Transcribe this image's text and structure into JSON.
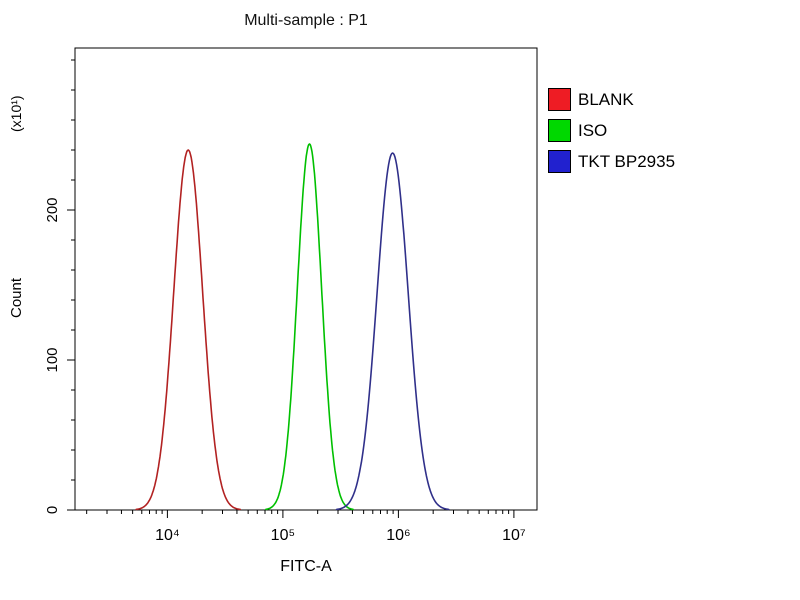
{
  "title": "Multi-sample : P1",
  "axes": {
    "x": {
      "label": "FITC-A"
    },
    "y": {
      "label": "Count",
      "unit": "(x10¹)"
    }
  },
  "legend": [
    {
      "label": "BLANK",
      "color": "#ee1c24"
    },
    {
      "label": "ISO",
      "color": "#00d800"
    },
    {
      "label": "TKT BP2935",
      "color": "#2121cf"
    }
  ],
  "chart_data": {
    "type": "line",
    "subtype": "flow-cytometry-histogram-overlay",
    "title": "Multi-sample : P1",
    "xlabel": "FITC-A",
    "ylabel": "Count (x10¹)",
    "x_scale": "log10",
    "xlim_log10": [
      3.2,
      7.2
    ],
    "ylim": [
      0,
      308
    ],
    "x_tick_exponents": [
      4,
      5,
      6,
      7
    ],
    "x_tick_labels": [
      "10⁴",
      "10⁵",
      "10⁶",
      "10⁷"
    ],
    "y_ticks": [
      0,
      100,
      200
    ],
    "y_minor_step": 20,
    "grid": false,
    "legend_position": "right",
    "series": [
      {
        "name": "BLANK",
        "color": "#b22222",
        "peak_x": 15000,
        "peak_x_log10": 4.18,
        "peak_count": 240,
        "sigma_log10": 0.125
      },
      {
        "name": "ISO",
        "color": "#00c000",
        "peak_x": 170000,
        "peak_x_log10": 5.23,
        "peak_count": 244,
        "sigma_log10": 0.105
      },
      {
        "name": "TKT BP2935",
        "color": "#30308a",
        "peak_x": 900000,
        "peak_x_log10": 5.95,
        "peak_count": 238,
        "sigma_log10": 0.135
      }
    ]
  }
}
